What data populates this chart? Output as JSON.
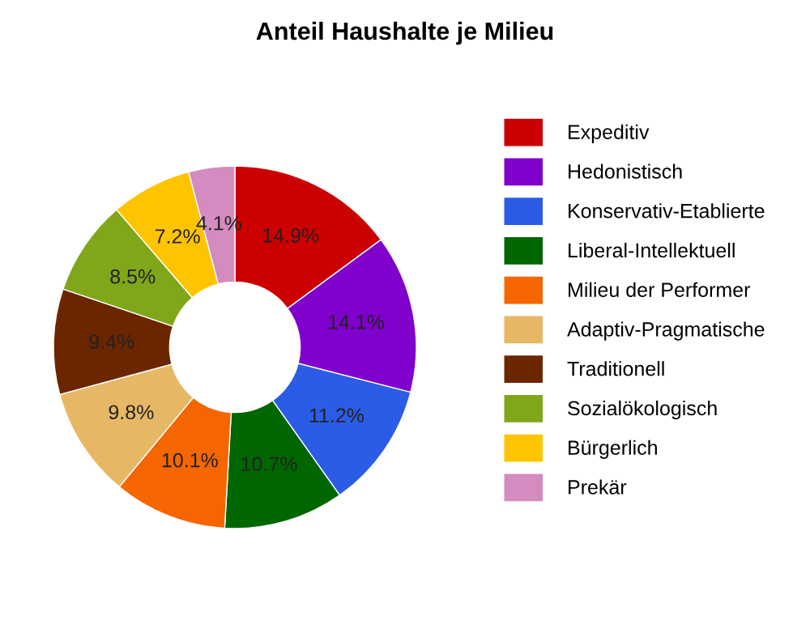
{
  "chart_data": {
    "type": "donut",
    "title": "Anteil Haushalte je Milieu",
    "categories": [
      "Expeditiv",
      "Hedonistisch",
      "Konservativ-Etablierte",
      "Liberal-Intellektuell",
      "Milieu der Performer",
      "Adaptiv-Pragmatische",
      "Traditionell",
      "Sozialökologisch",
      "Bürgerlich",
      "Prekär"
    ],
    "values": [
      14.9,
      14.1,
      11.2,
      10.7,
      10.1,
      9.8,
      9.4,
      8.5,
      7.2,
      4.1
    ],
    "value_labels": [
      "14.9%",
      "14.1%",
      "11.2%",
      "10.7%",
      "10.1%",
      "9.8%",
      "9.4%",
      "8.5%",
      "7.2%",
      "4.1%"
    ],
    "colors": [
      "#cc0000",
      "#8000cc",
      "#2b5ce6",
      "#006600",
      "#f56600",
      "#e6b866",
      "#6b2600",
      "#80a61a",
      "#ffc400",
      "#d48bbf"
    ],
    "legend": "right"
  }
}
